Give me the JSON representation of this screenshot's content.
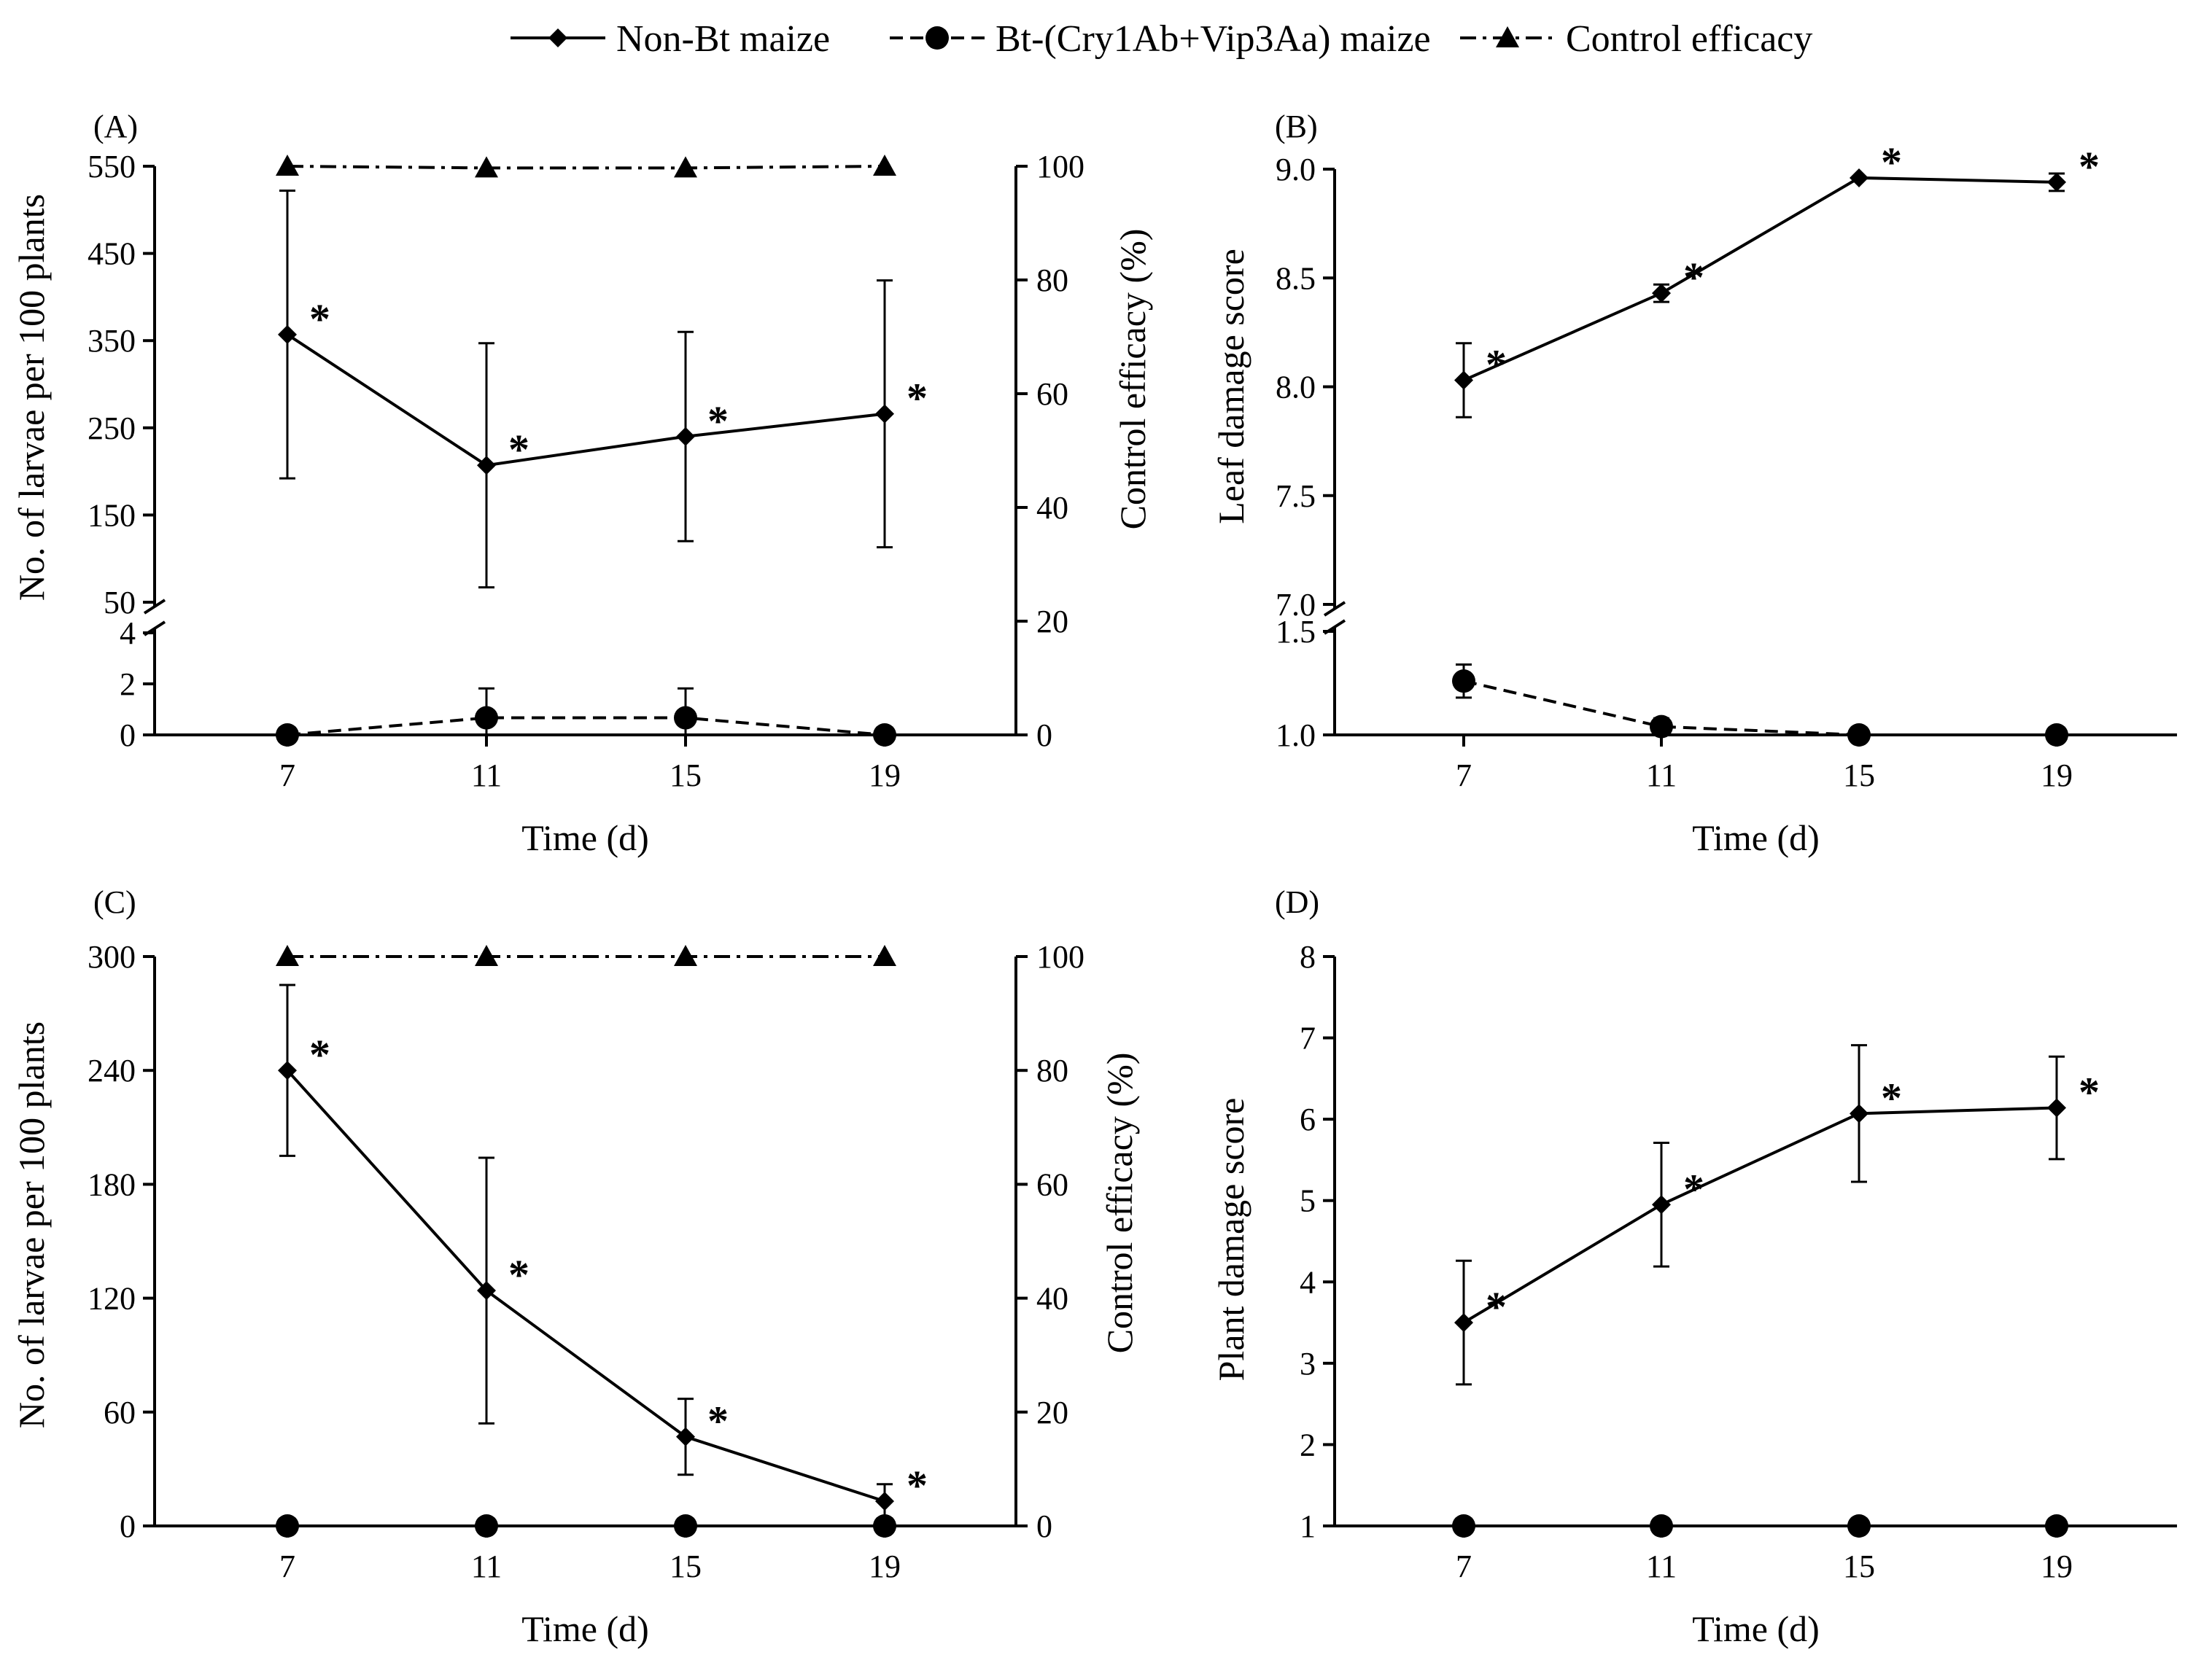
{
  "legend": [
    {
      "label": "Non-Bt maize",
      "marker": "diamond",
      "dash": "solid"
    },
    {
      "label": "Bt-(Cry1Ab+Vip3Aa) maize",
      "marker": "circle",
      "dash": "dashed"
    },
    {
      "label": "Control efficacy",
      "marker": "triangle",
      "dash": "dashdot"
    }
  ],
  "colors": {
    "ink": "#000000",
    "background": "#ffffff"
  },
  "chart_data": [
    {
      "panel": "(A)",
      "type": "line",
      "xlabel": "Time (d)",
      "ylabel": "No. of larvae per 100 plants",
      "y2label": "Control efficacy (%)",
      "x": [
        7,
        11,
        15,
        19
      ],
      "xticks": [
        "7",
        "11",
        "15",
        "19"
      ],
      "ylim_upper": [
        50,
        550
      ],
      "yticks_upper": [
        "50",
        "150",
        "250",
        "350",
        "450",
        "550"
      ],
      "ylim_lower": [
        0,
        4
      ],
      "yticks_lower": [
        "0",
        "2",
        "4"
      ],
      "y2lim": [
        0,
        100
      ],
      "y2ticks": [
        "0",
        "20",
        "40",
        "60",
        "80",
        "100"
      ],
      "series": [
        {
          "name": "Non-Bt maize",
          "axis": "upper",
          "values": [
            357,
            207,
            240,
            266
          ],
          "err": [
            165,
            140,
            120,
            153
          ],
          "stars": [
            "*",
            "*",
            "*",
            "*"
          ]
        },
        {
          "name": "Bt-(Cry1Ab+Vip3Aa) maize",
          "axis": "lower",
          "values": [
            0,
            0.67,
            0.67,
            0
          ],
          "err": [
            0,
            1.15,
            1.15,
            0
          ]
        },
        {
          "name": "Control efficacy",
          "axis": "y2",
          "values": [
            100,
            99.7,
            99.7,
            100
          ]
        }
      ]
    },
    {
      "panel": "(B)",
      "type": "line",
      "xlabel": "Time (d)",
      "ylabel": "Leaf damage score",
      "x": [
        7,
        11,
        15,
        19
      ],
      "xticks": [
        "7",
        "11",
        "15",
        "19"
      ],
      "ylim_upper": [
        7.0,
        9.0
      ],
      "yticks_upper": [
        "7.0",
        "7.5",
        "8.0",
        "8.5",
        "9.0"
      ],
      "ylim_lower": [
        1.0,
        1.5
      ],
      "yticks_lower": [
        "1.0",
        "1.5"
      ],
      "series": [
        {
          "name": "Non-Bt maize",
          "axis": "upper",
          "values": [
            8.03,
            8.43,
            8.96,
            8.94
          ],
          "err": [
            0.17,
            0.04,
            0,
            0.04
          ],
          "stars": [
            "*",
            "*",
            "*",
            "*"
          ]
        },
        {
          "name": "Bt-(Cry1Ab+Vip3Aa) maize",
          "axis": "lower",
          "values": [
            1.26,
            1.04,
            1.0,
            1.0
          ],
          "err": [
            0.08,
            0.04,
            0,
            0
          ]
        }
      ]
    },
    {
      "panel": "(C)",
      "type": "line",
      "xlabel": "Time (d)",
      "ylabel": "No. of larvae per 100 plants",
      "y2label": "Control efficacy (%)",
      "x": [
        7,
        11,
        15,
        19
      ],
      "xticks": [
        "7",
        "11",
        "15",
        "19"
      ],
      "ylim": [
        0,
        300
      ],
      "yticks": [
        "0",
        "60",
        "120",
        "180",
        "240",
        "300"
      ],
      "y2lim": [
        0,
        100
      ],
      "y2ticks": [
        "0",
        "20",
        "40",
        "60",
        "80",
        "100"
      ],
      "series": [
        {
          "name": "Non-Bt maize",
          "values": [
            240,
            124,
            47,
            13
          ],
          "err": [
            45,
            70,
            20,
            9
          ],
          "stars": [
            "*",
            "*",
            "*",
            "*"
          ]
        },
        {
          "name": "Bt-(Cry1Ab+Vip3Aa) maize",
          "values": [
            0,
            0,
            0,
            0
          ]
        },
        {
          "name": "Control efficacy",
          "axis": "y2",
          "values": [
            100,
            100,
            100,
            100
          ]
        }
      ]
    },
    {
      "panel": "(D)",
      "type": "line",
      "xlabel": "Time (d)",
      "ylabel": "Plant damage score",
      "x": [
        7,
        11,
        15,
        19
      ],
      "xticks": [
        "7",
        "11",
        "15",
        "19"
      ],
      "ylim": [
        1,
        8
      ],
      "yticks": [
        "1",
        "2",
        "3",
        "4",
        "5",
        "6",
        "7",
        "8"
      ],
      "series": [
        {
          "name": "Non-Bt maize",
          "values": [
            3.5,
            4.95,
            6.07,
            6.14
          ],
          "err": [
            0.76,
            0.76,
            0.84,
            0.63
          ],
          "stars": [
            "*",
            "*",
            "*",
            "*"
          ]
        },
        {
          "name": "Bt-(Cry1Ab+Vip3Aa) maize",
          "values": [
            1,
            1,
            1,
            1
          ]
        }
      ]
    }
  ]
}
